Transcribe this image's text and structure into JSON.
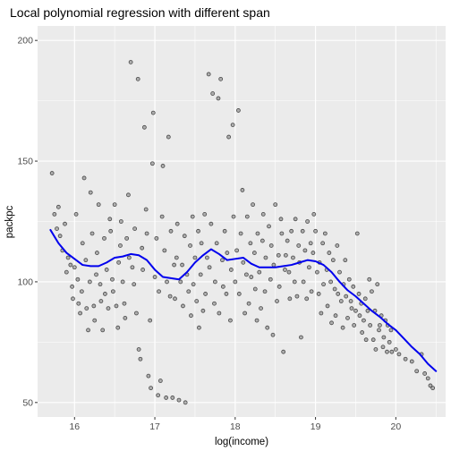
{
  "chart_data": {
    "type": "scatter",
    "title": "Local polynomial regression with different span",
    "xlabel": "log(income)",
    "ylabel": "packpc",
    "xlim": [
      15.54,
      20.62
    ],
    "ylim": [
      44,
      206
    ],
    "x_ticks": [
      16,
      17,
      18,
      19,
      20
    ],
    "y_ticks": [
      50,
      100,
      150,
      200
    ],
    "x_tick_labels": [
      "16",
      "17",
      "18",
      "19",
      "20"
    ],
    "y_tick_labels": [
      "50",
      "100",
      "150",
      "200"
    ],
    "grid": true,
    "legend": "none",
    "colors": {
      "panel": "#ebebeb",
      "grid": "#ffffff",
      "points": "#333333",
      "smooth": "#0000ee"
    },
    "points": [
      [
        15.72,
        145
      ],
      [
        15.75,
        128
      ],
      [
        15.78,
        122
      ],
      [
        15.8,
        131
      ],
      [
        15.82,
        119
      ],
      [
        15.85,
        113
      ],
      [
        15.88,
        124
      ],
      [
        15.9,
        104
      ],
      [
        15.92,
        110
      ],
      [
        15.95,
        107
      ],
      [
        15.97,
        98
      ],
      [
        15.98,
        93
      ],
      [
        16.0,
        106
      ],
      [
        16.02,
        128
      ],
      [
        16.04,
        101
      ],
      [
        16.05,
        91
      ],
      [
        16.07,
        87
      ],
      [
        16.09,
        96
      ],
      [
        16.1,
        116
      ],
      [
        16.12,
        143
      ],
      [
        16.14,
        109
      ],
      [
        16.15,
        89
      ],
      [
        16.17,
        80
      ],
      [
        16.19,
        100
      ],
      [
        16.2,
        137
      ],
      [
        16.22,
        120
      ],
      [
        16.24,
        90
      ],
      [
        16.25,
        84
      ],
      [
        16.27,
        103
      ],
      [
        16.28,
        112
      ],
      [
        16.3,
        132
      ],
      [
        16.32,
        99
      ],
      [
        16.33,
        92
      ],
      [
        16.35,
        80
      ],
      [
        16.37,
        118
      ],
      [
        16.38,
        95
      ],
      [
        16.4,
        105
      ],
      [
        16.42,
        89
      ],
      [
        16.44,
        126
      ],
      [
        16.45,
        121
      ],
      [
        16.47,
        101
      ],
      [
        16.48,
        96
      ],
      [
        16.5,
        132
      ],
      [
        16.52,
        90
      ],
      [
        16.54,
        81
      ],
      [
        16.55,
        108
      ],
      [
        16.57,
        115
      ],
      [
        16.58,
        125
      ],
      [
        16.6,
        100
      ],
      [
        16.62,
        91
      ],
      [
        16.63,
        85
      ],
      [
        16.65,
        118
      ],
      [
        16.67,
        136
      ],
      [
        16.68,
        110
      ],
      [
        16.7,
        191
      ],
      [
        16.72,
        106
      ],
      [
        16.74,
        99
      ],
      [
        16.75,
        122
      ],
      [
        16.77,
        87
      ],
      [
        16.79,
        184
      ],
      [
        16.8,
        72
      ],
      [
        16.82,
        68
      ],
      [
        16.84,
        114
      ],
      [
        16.85,
        105
      ],
      [
        16.87,
        164
      ],
      [
        16.89,
        130
      ],
      [
        16.9,
        120
      ],
      [
        16.92,
        61
      ],
      [
        16.94,
        84
      ],
      [
        16.95,
        56
      ],
      [
        16.97,
        149
      ],
      [
        16.98,
        170
      ],
      [
        17.0,
        102
      ],
      [
        17.02,
        118
      ],
      [
        17.04,
        53
      ],
      [
        17.05,
        96
      ],
      [
        17.07,
        59
      ],
      [
        17.09,
        127
      ],
      [
        17.1,
        148
      ],
      [
        17.12,
        113
      ],
      [
        17.14,
        52
      ],
      [
        17.15,
        100
      ],
      [
        17.17,
        160
      ],
      [
        17.19,
        94
      ],
      [
        17.2,
        121
      ],
      [
        17.22,
        52
      ],
      [
        17.24,
        107
      ],
      [
        17.25,
        93
      ],
      [
        17.27,
        110
      ],
      [
        17.28,
        124
      ],
      [
        17.3,
        51
      ],
      [
        17.32,
        100
      ],
      [
        17.34,
        107
      ],
      [
        17.35,
        90
      ],
      [
        17.37,
        119
      ],
      [
        17.38,
        50
      ],
      [
        17.4,
        103
      ],
      [
        17.42,
        96
      ],
      [
        17.44,
        115
      ],
      [
        17.45,
        86
      ],
      [
        17.47,
        127
      ],
      [
        17.48,
        99
      ],
      [
        17.5,
        110
      ],
      [
        17.52,
        92
      ],
      [
        17.54,
        121
      ],
      [
        17.55,
        81
      ],
      [
        17.57,
        103
      ],
      [
        17.58,
        116
      ],
      [
        17.6,
        88
      ],
      [
        17.62,
        128
      ],
      [
        17.63,
        95
      ],
      [
        17.65,
        110
      ],
      [
        17.67,
        186
      ],
      [
        17.68,
        106
      ],
      [
        17.7,
        124
      ],
      [
        17.72,
        178
      ],
      [
        17.74,
        91
      ],
      [
        17.75,
        100
      ],
      [
        17.77,
        116
      ],
      [
        17.79,
        176
      ],
      [
        17.8,
        87
      ],
      [
        17.82,
        184
      ],
      [
        17.84,
        109
      ],
      [
        17.85,
        98
      ],
      [
        17.87,
        121
      ],
      [
        17.89,
        95
      ],
      [
        17.9,
        112
      ],
      [
        17.92,
        160
      ],
      [
        17.94,
        84
      ],
      [
        17.95,
        105
      ],
      [
        17.97,
        165
      ],
      [
        17.98,
        127
      ],
      [
        18.0,
        100
      ],
      [
        18.02,
        113
      ],
      [
        18.04,
        171
      ],
      [
        18.05,
        95
      ],
      [
        18.07,
        120
      ],
      [
        18.09,
        138
      ],
      [
        18.1,
        108
      ],
      [
        18.12,
        87
      ],
      [
        18.14,
        103
      ],
      [
        18.15,
        127
      ],
      [
        18.17,
        91
      ],
      [
        18.19,
        116
      ],
      [
        18.2,
        102
      ],
      [
        18.22,
        132
      ],
      [
        18.24,
        112
      ],
      [
        18.25,
        97
      ],
      [
        18.27,
        84
      ],
      [
        18.28,
        120
      ],
      [
        18.3,
        104
      ],
      [
        18.32,
        89
      ],
      [
        18.34,
        117
      ],
      [
        18.35,
        128
      ],
      [
        18.37,
        96
      ],
      [
        18.38,
        110
      ],
      [
        18.4,
        81
      ],
      [
        18.42,
        123
      ],
      [
        18.44,
        101
      ],
      [
        18.45,
        115
      ],
      [
        18.47,
        78
      ],
      [
        18.48,
        107
      ],
      [
        18.5,
        132
      ],
      [
        18.52,
        92
      ],
      [
        18.54,
        111
      ],
      [
        18.55,
        98
      ],
      [
        18.57,
        126
      ],
      [
        18.58,
        120
      ],
      [
        18.6,
        71
      ],
      [
        18.62,
        105
      ],
      [
        18.63,
        111
      ],
      [
        18.65,
        117
      ],
      [
        18.67,
        104
      ],
      [
        18.68,
        93
      ],
      [
        18.7,
        121
      ],
      [
        18.72,
        110
      ],
      [
        18.74,
        100
      ],
      [
        18.75,
        126
      ],
      [
        18.77,
        94
      ],
      [
        18.79,
        115
      ],
      [
        18.8,
        108
      ],
      [
        18.82,
        77
      ],
      [
        18.84,
        121
      ],
      [
        18.85,
        100
      ],
      [
        18.87,
        113
      ],
      [
        18.89,
        93
      ],
      [
        18.9,
        125
      ],
      [
        18.92,
        106
      ],
      [
        18.94,
        116
      ],
      [
        18.95,
        96
      ],
      [
        18.97,
        112
      ],
      [
        18.98,
        128
      ],
      [
        19.0,
        121
      ],
      [
        19.02,
        104
      ],
      [
        19.04,
        95
      ],
      [
        19.05,
        108
      ],
      [
        19.07,
        87
      ],
      [
        19.09,
        116
      ],
      [
        19.1,
        99
      ],
      [
        19.12,
        120
      ],
      [
        19.14,
        105
      ],
      [
        19.15,
        90
      ],
      [
        19.17,
        112
      ],
      [
        19.19,
        100
      ],
      [
        19.2,
        83
      ],
      [
        19.22,
        109
      ],
      [
        19.24,
        97
      ],
      [
        19.25,
        86
      ],
      [
        19.27,
        115
      ],
      [
        19.28,
        95
      ],
      [
        19.3,
        104
      ],
      [
        19.32,
        92
      ],
      [
        19.34,
        81
      ],
      [
        19.35,
        99
      ],
      [
        19.37,
        109
      ],
      [
        19.38,
        94
      ],
      [
        19.4,
        85
      ],
      [
        19.42,
        101
      ],
      [
        19.44,
        92
      ],
      [
        19.45,
        89
      ],
      [
        19.47,
        98
      ],
      [
        19.48,
        82
      ],
      [
        19.5,
        88
      ],
      [
        19.52,
        120
      ],
      [
        19.54,
        95
      ],
      [
        19.55,
        86
      ],
      [
        19.57,
        91
      ],
      [
        19.58,
        79
      ],
      [
        19.6,
        84
      ],
      [
        19.62,
        93
      ],
      [
        19.63,
        76
      ],
      [
        19.65,
        88
      ],
      [
        19.67,
        101
      ],
      [
        19.68,
        82
      ],
      [
        19.7,
        96
      ],
      [
        19.72,
        76
      ],
      [
        19.74,
        88
      ],
      [
        19.75,
        72
      ],
      [
        19.77,
        99
      ],
      [
        19.79,
        80
      ],
      [
        19.8,
        82
      ],
      [
        19.82,
        86
      ],
      [
        19.84,
        73
      ],
      [
        19.85,
        77
      ],
      [
        19.87,
        84
      ],
      [
        19.89,
        71
      ],
      [
        19.9,
        82
      ],
      [
        19.92,
        75
      ],
      [
        19.94,
        80
      ],
      [
        19.95,
        71
      ],
      [
        20.0,
        72
      ],
      [
        20.04,
        70
      ],
      [
        20.12,
        68
      ],
      [
        20.2,
        67
      ],
      [
        20.26,
        63
      ],
      [
        20.32,
        70
      ],
      [
        20.36,
        62
      ],
      [
        20.4,
        60
      ],
      [
        20.43,
        57
      ],
      [
        20.46,
        56
      ]
    ],
    "smooth": {
      "x": [
        15.7,
        15.8,
        15.9,
        16.0,
        16.1,
        16.2,
        16.3,
        16.4,
        16.5,
        16.6,
        16.7,
        16.8,
        16.9,
        17.0,
        17.1,
        17.2,
        17.3,
        17.4,
        17.5,
        17.6,
        17.7,
        17.8,
        17.9,
        18.0,
        18.1,
        18.2,
        18.3,
        18.4,
        18.5,
        18.6,
        18.7,
        18.8,
        18.9,
        19.0,
        19.1,
        19.2,
        19.3,
        19.4,
        19.5,
        19.6,
        19.7,
        19.8,
        19.9,
        20.0,
        20.1,
        20.2,
        20.3,
        20.4,
        20.5
      ],
      "y": [
        121.5,
        116,
        112,
        109.5,
        107,
        106.5,
        106.5,
        108,
        110,
        110.5,
        111.5,
        111,
        109,
        105,
        102,
        101.5,
        101,
        104,
        108,
        111,
        113.5,
        111.5,
        109,
        109.5,
        110,
        107.5,
        106,
        106,
        106,
        106.5,
        107,
        108,
        109,
        108.5,
        107,
        104,
        100,
        96.5,
        94,
        91,
        88,
        85.5,
        82.5,
        80,
        76.5,
        73,
        70,
        66,
        63
      ]
    }
  }
}
